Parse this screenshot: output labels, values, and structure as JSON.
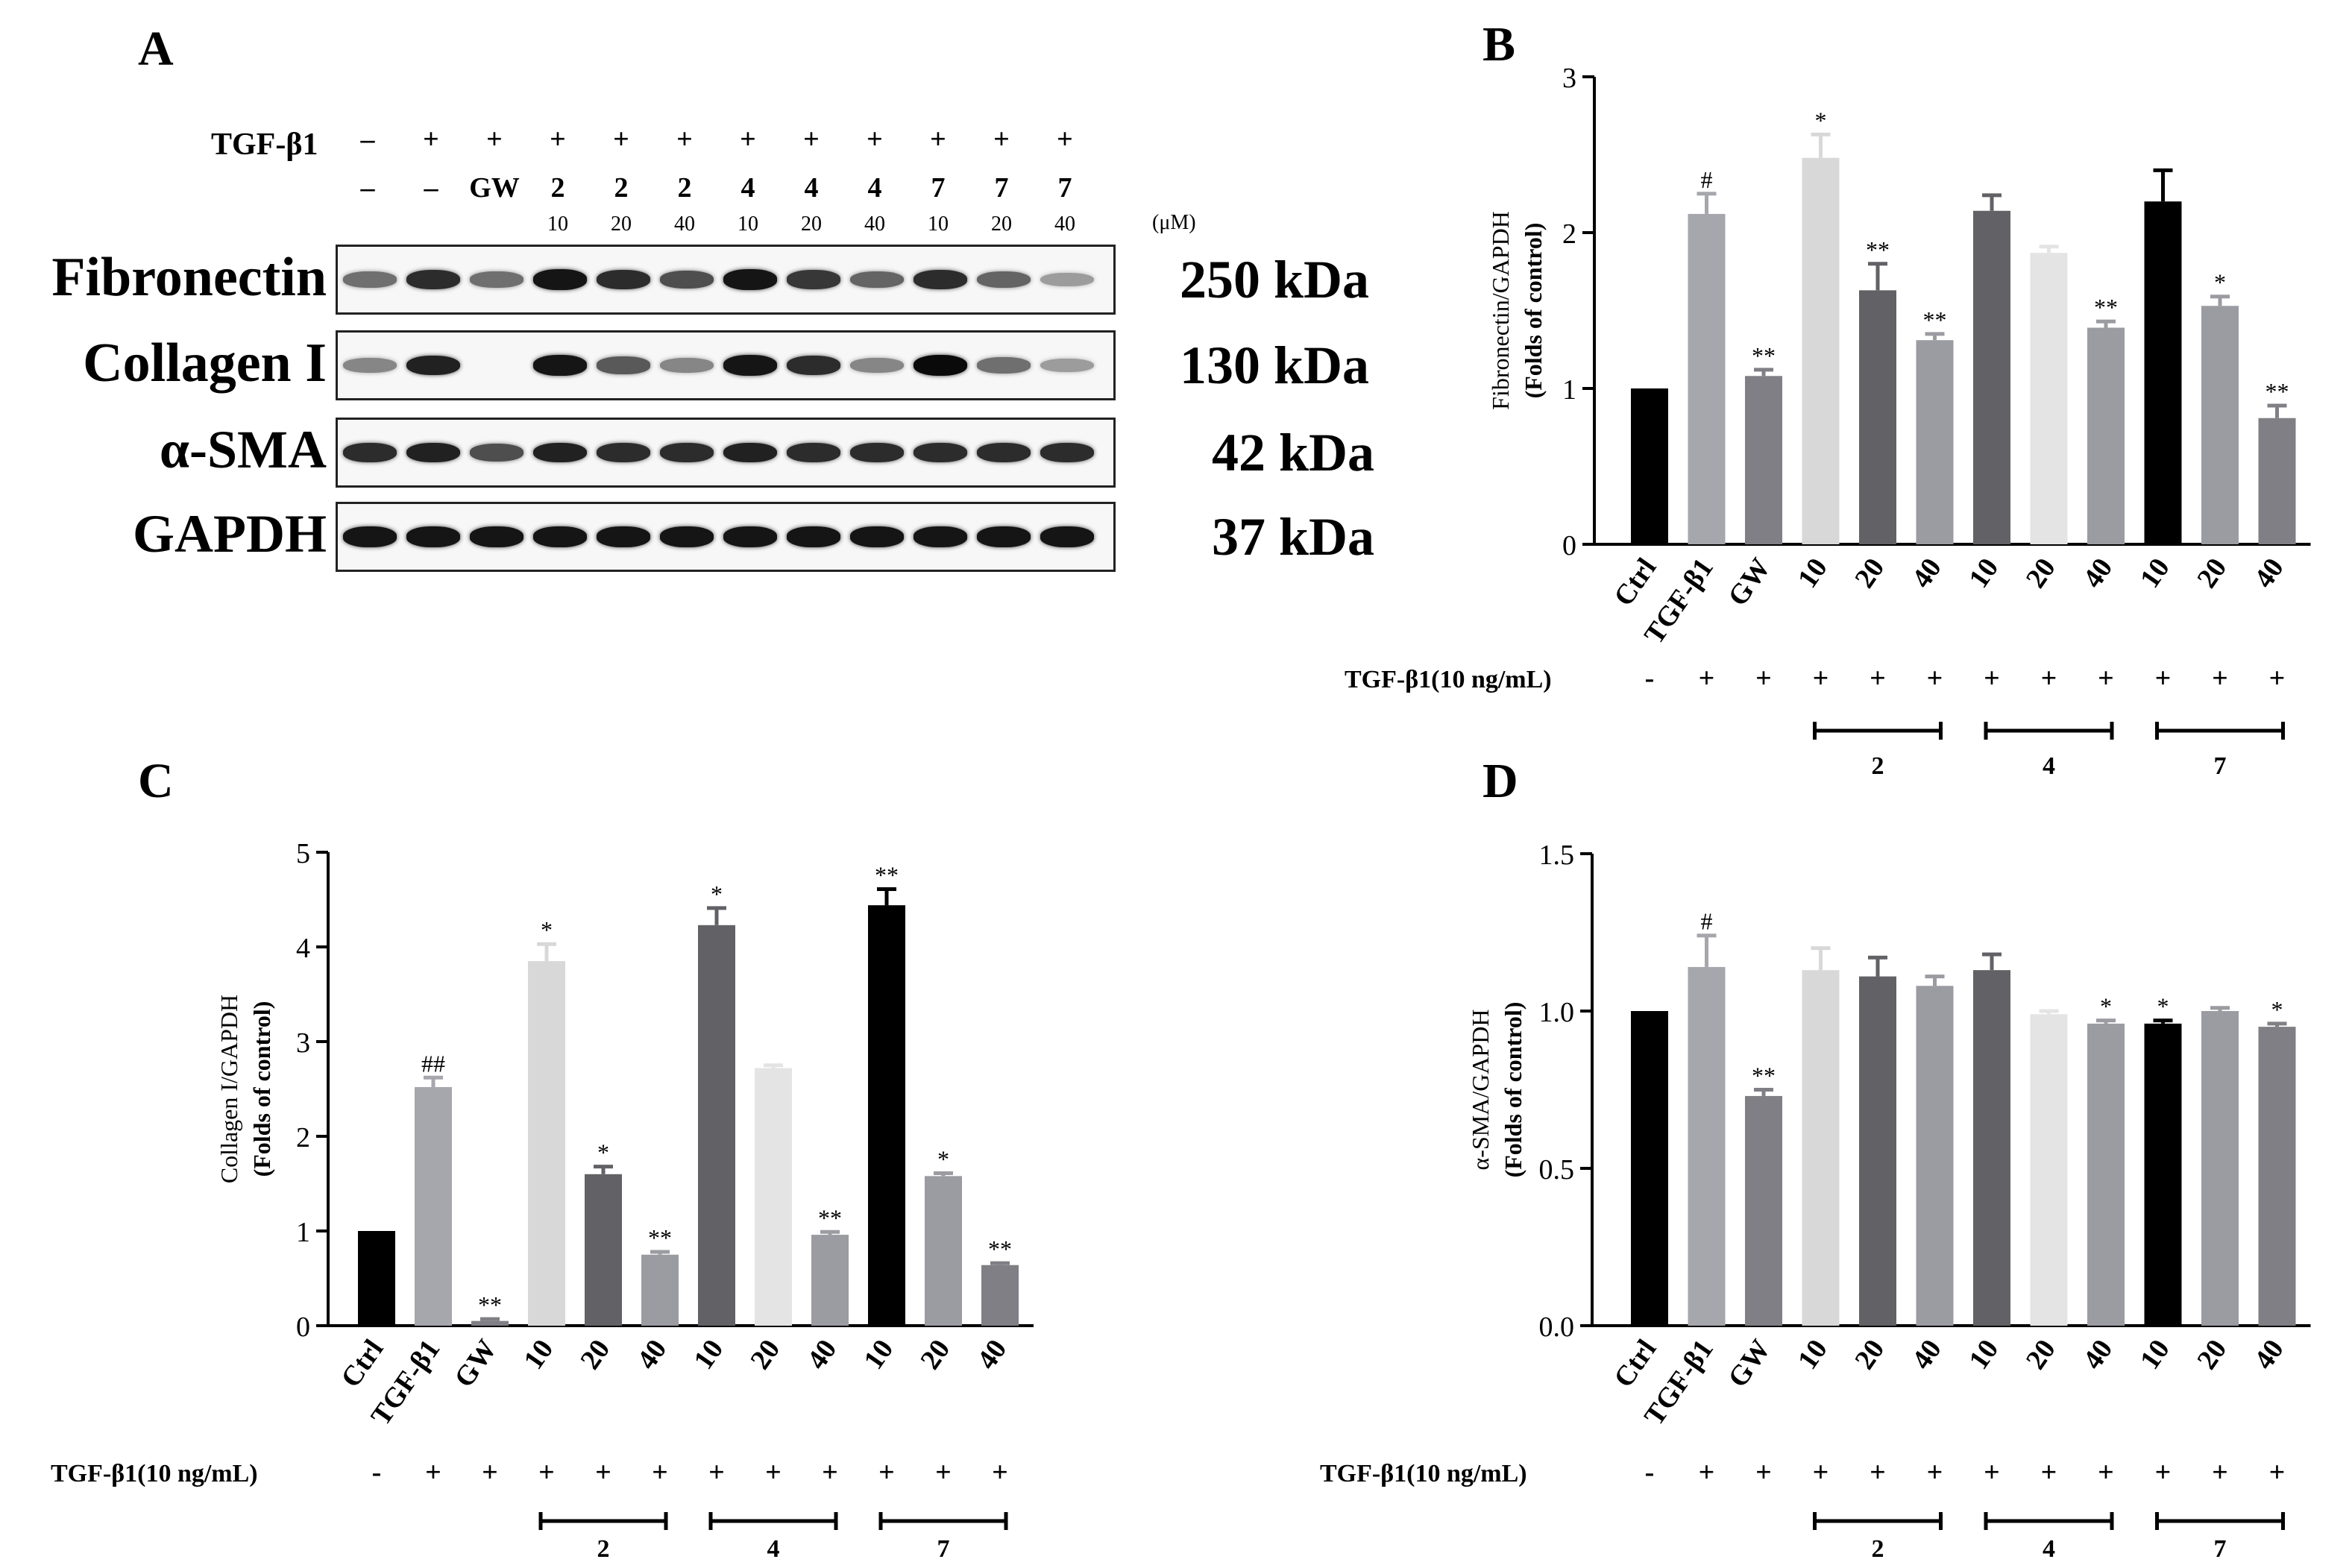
{
  "panels": {
    "A": "A",
    "B": "B",
    "C": "C",
    "D": "D"
  },
  "western_blot": {
    "treatment_label": "TGF-β1",
    "unit_label": "(μM)",
    "lanes": [
      {
        "tgf": "–",
        "drug": "–",
        "conc": ""
      },
      {
        "tgf": "+",
        "drug": "–",
        "conc": ""
      },
      {
        "tgf": "+",
        "drug": "GW",
        "conc": ""
      },
      {
        "tgf": "+",
        "drug": "2",
        "conc": "10"
      },
      {
        "tgf": "+",
        "drug": "2",
        "conc": "20"
      },
      {
        "tgf": "+",
        "drug": "2",
        "conc": "40"
      },
      {
        "tgf": "+",
        "drug": "4",
        "conc": "10"
      },
      {
        "tgf": "+",
        "drug": "4",
        "conc": "20"
      },
      {
        "tgf": "+",
        "drug": "4",
        "conc": "40"
      },
      {
        "tgf": "+",
        "drug": "7",
        "conc": "10"
      },
      {
        "tgf": "+",
        "drug": "7",
        "conc": "20"
      },
      {
        "tgf": "+",
        "drug": "7",
        "conc": "40"
      }
    ],
    "proteins": [
      {
        "name": "Fibronectin",
        "kda": "250 kDa",
        "intensity": [
          0.55,
          0.85,
          0.55,
          0.95,
          0.85,
          0.7,
          0.95,
          0.8,
          0.6,
          0.85,
          0.6,
          0.35
        ]
      },
      {
        "name": "Collagen I",
        "kda": "130 kDa",
        "intensity": [
          0.45,
          0.9,
          0.0,
          0.95,
          0.65,
          0.45,
          0.95,
          0.85,
          0.45,
          1.0,
          0.55,
          0.35
        ]
      },
      {
        "name": "α-SMA",
        "kda": "42 kDa",
        "intensity": [
          0.85,
          0.9,
          0.7,
          0.9,
          0.85,
          0.85,
          0.9,
          0.85,
          0.85,
          0.85,
          0.85,
          0.85
        ]
      },
      {
        "name": "GAPDH",
        "kda": "37 kDa",
        "intensity": [
          0.95,
          0.95,
          0.95,
          0.95,
          0.95,
          0.95,
          0.95,
          0.95,
          0.95,
          0.95,
          0.95,
          0.95
        ]
      }
    ]
  },
  "treatment_row": {
    "label": "TGF-β1(10 ng/mL)",
    "signs": [
      "-",
      "+",
      "+",
      "+",
      "+",
      "+",
      "+",
      "+",
      "+",
      "+",
      "+",
      "+"
    ],
    "groups": [
      {
        "name": "2",
        "from": 3,
        "to": 5
      },
      {
        "name": "4",
        "from": 6,
        "to": 8
      },
      {
        "name": "7",
        "from": 9,
        "to": 11
      }
    ]
  },
  "bar_colors": [
    "#000000",
    "#a6a6ad",
    "#7f7f85",
    "#d8d8d8",
    "#626266",
    "#9b9ba2",
    "#626266",
    "#e4e4e4",
    "#9b9ba2",
    "#000000",
    "#9b9ba2",
    "#7f7f85"
  ],
  "chart_data": [
    {
      "panel": "B",
      "type": "bar",
      "ylabel": "Fibronectin/GAPDH",
      "ylabel2": "(Folds of control)",
      "categories": [
        "Ctrl",
        "TGF-β1",
        "GW",
        "10",
        "20",
        "40",
        "10",
        "20",
        "40",
        "10",
        "20",
        "40"
      ],
      "values": [
        1.0,
        2.12,
        1.08,
        2.48,
        1.63,
        1.31,
        2.14,
        1.87,
        1.39,
        2.2,
        1.53,
        0.81
      ],
      "errors": [
        0.0,
        0.13,
        0.04,
        0.15,
        0.17,
        0.04,
        0.1,
        0.04,
        0.04,
        0.2,
        0.06,
        0.08
      ],
      "significance": [
        "",
        "#",
        "**",
        "*",
        "**",
        "**",
        "",
        "",
        "**",
        "",
        "*",
        "**"
      ],
      "ylim": [
        0,
        3
      ],
      "yticks": [
        "0",
        "1",
        "2",
        "3"
      ],
      "ytick_values": [
        0,
        1,
        2,
        3
      ]
    },
    {
      "panel": "C",
      "type": "bar",
      "ylabel": "Collagen I/GAPDH",
      "ylabel2": "(Folds of control)",
      "categories": [
        "Ctrl",
        "TGF-β1",
        "GW",
        "10",
        "20",
        "40",
        "10",
        "20",
        "40",
        "10",
        "20",
        "40"
      ],
      "values": [
        1.0,
        2.52,
        0.05,
        3.85,
        1.6,
        0.75,
        4.23,
        2.72,
        0.96,
        4.44,
        1.58,
        0.64
      ],
      "errors": [
        0.0,
        0.1,
        0.02,
        0.18,
        0.08,
        0.03,
        0.18,
        0.03,
        0.03,
        0.17,
        0.03,
        0.02
      ],
      "significance": [
        "",
        "##",
        "**",
        "*",
        "*",
        "**",
        "*",
        "",
        "**",
        "**",
        "*",
        "**"
      ],
      "ylim": [
        0,
        5
      ],
      "yticks": [
        "0",
        "1",
        "2",
        "3",
        "4",
        "5"
      ],
      "ytick_values": [
        0,
        1,
        2,
        3,
        4,
        5
      ]
    },
    {
      "panel": "D",
      "type": "bar",
      "ylabel": "α-SMA/GAPDH",
      "ylabel2": "(Folds of control)",
      "categories": [
        "Ctrl",
        "TGF-β1",
        "GW",
        "10",
        "20",
        "40",
        "10",
        "20",
        "40",
        "10",
        "20",
        "40"
      ],
      "values": [
        1.0,
        1.14,
        0.73,
        1.13,
        1.11,
        1.08,
        1.13,
        0.99,
        0.96,
        0.96,
        1.0,
        0.95
      ],
      "errors": [
        0.0,
        0.1,
        0.02,
        0.07,
        0.06,
        0.03,
        0.05,
        0.01,
        0.01,
        0.01,
        0.01,
        0.01
      ],
      "significance": [
        "",
        "#",
        "**",
        "",
        "",
        "",
        "",
        "",
        "*",
        "*",
        "",
        "*"
      ],
      "ylim": [
        0,
        1.5
      ],
      "yticks": [
        "0.0",
        "0.5",
        "1.0",
        "1.5"
      ],
      "ytick_values": [
        0,
        0.5,
        1.0,
        1.5
      ]
    }
  ]
}
